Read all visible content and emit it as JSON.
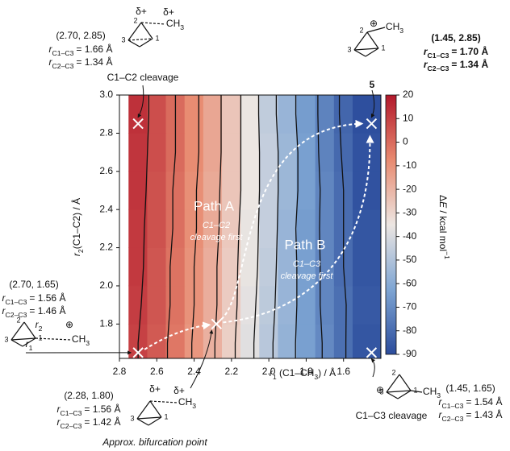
{
  "chart_data": {
    "type": "heatmap",
    "x_label": [
      {
        "text": "r",
        "style": "italic"
      },
      {
        "text": "1",
        "style": "sub"
      },
      {
        "text": " (C1–CH"
      },
      {
        "text": "3",
        "style": "sub"
      },
      {
        "text": ") / Å"
      }
    ],
    "y_label": [
      {
        "text": "r",
        "style": "italic"
      },
      {
        "text": "2",
        "style": "sub"
      },
      {
        "text": "(C1–C2) / Å"
      }
    ],
    "colorbar_label": [
      {
        "text": "Δ"
      },
      {
        "text": "E",
        "style": "italic"
      },
      {
        "text": " / kcal mol"
      },
      {
        "text": "−1",
        "style": "sup"
      }
    ],
    "xlim": [
      2.8,
      1.4
    ],
    "ylim": [
      1.62,
      3.0
    ],
    "xticks": [
      2.8,
      2.6,
      2.4,
      2.2,
      {
        "value": 2,
        "label": "2.0"
      },
      1.8,
      1.6
    ],
    "yticks": [
      1.8,
      {
        "value": 2,
        "label": "2.0"
      },
      2.2,
      2.4,
      2.6,
      2.8,
      {
        "value": 3,
        "label": "3.0"
      }
    ],
    "clim": [
      -90,
      20
    ],
    "cticks": [
      20,
      10,
      0,
      -10,
      -20,
      -30,
      -40,
      -50,
      -60,
      -70,
      -80,
      -90
    ],
    "colormap": [
      "#2b4c9c",
      "#7ea5d3",
      "#ece6e2",
      "#e88a70",
      "#b2182b"
    ],
    "x": [
      2.7,
      2.6,
      2.5,
      2.4,
      2.3,
      2.2,
      2.1,
      2.0,
      1.9,
      1.8,
      1.7,
      1.6,
      1.5
    ],
    "y": [
      1.7,
      1.9,
      2.1,
      2.3,
      2.5,
      2.7,
      2.9
    ],
    "z": [
      [
        10,
        4,
        -3,
        -11,
        -19,
        -28,
        -38,
        -48,
        -57,
        -64,
        -71,
        -79,
        -87
      ],
      [
        11,
        5,
        -2,
        -10,
        -18,
        -27,
        -37,
        -47,
        -56,
        -64,
        -72,
        -79,
        -86
      ],
      [
        12,
        5,
        -2,
        -10,
        -18,
        -27,
        -36,
        -46,
        -56,
        -64,
        -72,
        -80,
        -87
      ],
      [
        12,
        6,
        -1,
        -9,
        -17,
        -26,
        -36,
        -45,
        -56,
        -65,
        -72,
        -80,
        -87
      ],
      [
        13,
        6,
        -1,
        -9,
        -17,
        -25,
        -35,
        -45,
        -55,
        -64,
        -72,
        -80,
        -88
      ],
      [
        13,
        7,
        0,
        -8,
        -16,
        -25,
        -35,
        -45,
        -55,
        -64,
        -73,
        -81,
        -88
      ],
      [
        14,
        7,
        0,
        -8,
        -16,
        -25,
        -35,
        -46,
        -56,
        -65,
        -73,
        -82,
        -89
      ]
    ],
    "contour_levels": [
      10,
      0,
      -10,
      -20,
      -30,
      -40,
      -50,
      -60,
      -70,
      -80
    ],
    "r_symbol": "r",
    "bond_labels": [
      "C1–C3",
      "C2–C3"
    ],
    "methyl": [
      {
        "text": "CH"
      },
      {
        "text": "3",
        "style": "sub"
      }
    ],
    "points": [
      {
        "x": 2.7,
        "y": 2.85,
        "coords": "(2.70, 2.85)",
        "d13": "= 1.66 Å",
        "d23": "= 1.34 Å",
        "caption": "C1–C2 cleavage",
        "atoms": [
          "2",
          "3",
          "1"
        ],
        "charges": [
          "δ+",
          "δ+"
        ]
      },
      {
        "x": 1.45,
        "y": 2.85,
        "coords": "(1.45, 2.85)",
        "d13": "= 1.70 Å",
        "d23": "= 1.34 Å",
        "caption": "5",
        "atoms": [
          "2",
          "3",
          "1"
        ],
        "charges": [
          "⊕"
        ]
      },
      {
        "x": 2.7,
        "y": 1.65,
        "coords": "(2.70, 1.65)",
        "d13": "= 1.56 Å",
        "d23": "= 1.46 Å",
        "atoms": [
          "2",
          "3",
          "1"
        ],
        "charges": [
          "⊕"
        ],
        "bond_symbols": [
          "2",
          "1"
        ]
      },
      {
        "x": 1.45,
        "y": 1.65,
        "coords": "(1.45, 1.65)",
        "d13": "= 1.54 Å",
        "d23": "= 1.43 Å",
        "caption": "C1–C3 cleavage",
        "atoms": [
          "2",
          "3",
          "1"
        ],
        "charges": [
          "⊕"
        ]
      },
      {
        "x": 2.28,
        "y": 1.8,
        "coords": "(2.28, 1.80)",
        "d13": "= 1.56 Å",
        "d23": "= 1.42 Å",
        "caption": "Approx. bifurcation point",
        "atoms": [
          "3",
          "1"
        ],
        "charges": [
          "δ+",
          "δ+"
        ]
      }
    ],
    "path_labels": [
      {
        "title": "Path A",
        "lines": [
          "C1–C2",
          "cleavage first"
        ]
      },
      {
        "title": "Path B",
        "lines": [
          "C1–C3",
          "cleavage first"
        ]
      }
    ]
  }
}
